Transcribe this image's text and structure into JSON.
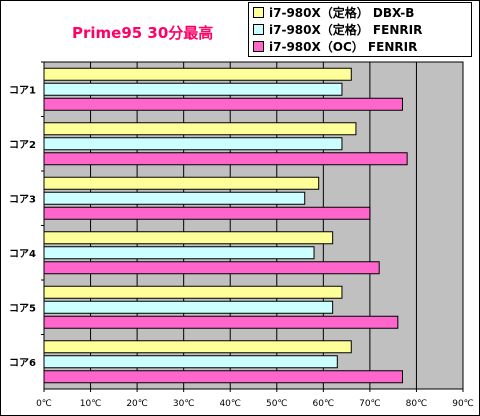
{
  "chart_data": {
    "type": "bar",
    "orientation": "horizontal",
    "title": "Prime95 30分最高",
    "categories": [
      "コア1",
      "コア2",
      "コア3",
      "コア4",
      "コア5",
      "コア6"
    ],
    "series": [
      {
        "name": "i7-980X（定格） DBX-B",
        "color": "#ffff99",
        "values": [
          66,
          67,
          59,
          62,
          64,
          66
        ]
      },
      {
        "name": "i7-980X（定格） FENRIR",
        "color": "#ccffff",
        "values": [
          64,
          64,
          56,
          58,
          62,
          63
        ]
      },
      {
        "name": "i7-980X（OC） FENRIR",
        "color": "#ff66cc",
        "values": [
          77,
          78,
          70,
          72,
          76,
          77
        ]
      }
    ],
    "xlim": [
      0,
      90
    ],
    "xticks": [
      "0℃",
      "10℃",
      "20℃",
      "30℃",
      "40℃",
      "50℃",
      "60℃",
      "70℃",
      "80℃",
      "90℃"
    ],
    "grid": true,
    "plot_background": "#c0c0c0",
    "legend_position": "top-right"
  }
}
